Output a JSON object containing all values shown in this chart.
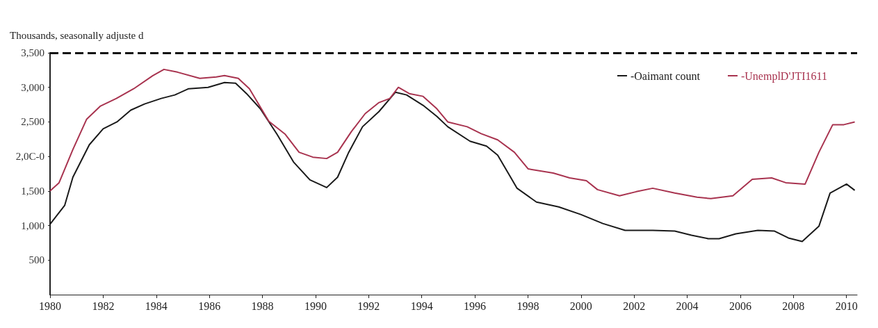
{
  "chart_data": {
    "type": "line",
    "ylabel": "Thousands, seasonally adjuste d",
    "xlim": [
      1980,
      2010.4
    ],
    "xticks": [
      1980,
      1982,
      1984,
      1986,
      1988,
      1990,
      1992,
      1994,
      1996,
      1998,
      2000,
      2002,
      2004,
      2006,
      2008,
      2010
    ],
    "ylim": [
      0,
      3500
    ],
    "yticks": [
      {
        "value": 500,
        "label": "500"
      },
      {
        "value": 1000,
        "label": "1,000"
      },
      {
        "value": 1500,
        "label": "1,500"
      },
      {
        "value": 2000,
        "label": "2,0C-0"
      },
      {
        "value": 2500,
        "label": "2,500"
      },
      {
        "value": 3000,
        "label": "3,000"
      },
      {
        "value": 3500,
        "label": "3,500"
      }
    ],
    "ref_lines": [
      {
        "axis": "y",
        "value": 3500,
        "line_style": "dashed",
        "color": "#111111"
      }
    ],
    "legend": "top right",
    "grid": false,
    "marker": "none",
    "line_style": "solid",
    "series": [
      {
        "name": "-Oaimant count",
        "color": "#1a1a1a",
        "x": [
          1980.0,
          1980.55,
          1980.86,
          1981.48,
          1982.0,
          1982.52,
          1983.04,
          1983.56,
          1984.19,
          1984.7,
          1985.22,
          1985.95,
          1986.57,
          1986.99,
          1987.4,
          1987.92,
          1988.55,
          1989.17,
          1989.79,
          1990.42,
          1990.83,
          1991.25,
          1991.77,
          1992.39,
          1993.01,
          1993.43,
          1994.05,
          1994.57,
          1994.98,
          1995.82,
          1996.44,
          1996.86,
          1997.59,
          1998.32,
          1999.16,
          1999.99,
          2000.82,
          2001.66,
          2002.7,
          2003.53,
          2004.16,
          2004.79,
          2005.2,
          2005.83,
          2006.66,
          2007.29,
          2007.81,
          2008.33,
          2008.96,
          2009.38,
          2010.0,
          2010.31
        ],
        "values": [
          1020,
          1290,
          1700,
          2170,
          2400,
          2500,
          2670,
          2760,
          2840,
          2890,
          2980,
          3000,
          3070,
          3060,
          2910,
          2690,
          2320,
          1920,
          1660,
          1550,
          1700,
          2060,
          2430,
          2650,
          2930,
          2890,
          2740,
          2580,
          2430,
          2220,
          2150,
          2020,
          1540,
          1340,
          1270,
          1160,
          1030,
          930,
          930,
          920,
          860,
          810,
          810,
          880,
          930,
          920,
          820,
          770,
          990,
          1470,
          1600,
          1510
        ]
      },
      {
        "name": "-UnemplD'JTI1611",
        "color": "#a8334f",
        "x": [
          1980.0,
          1980.34,
          1980.86,
          1981.38,
          1981.9,
          1982.5,
          1983.15,
          1983.87,
          1984.29,
          1984.8,
          1985.64,
          1986.26,
          1986.57,
          1987.09,
          1987.51,
          1988.24,
          1988.86,
          1989.38,
          1989.9,
          1990.42,
          1990.83,
          1991.35,
          1991.87,
          1992.39,
          1992.8,
          1993.12,
          1993.53,
          1994.05,
          1994.57,
          1994.98,
          1995.71,
          1996.24,
          1996.86,
          1997.49,
          1998.01,
          1998.95,
          1999.57,
          2000.2,
          2000.62,
          2001.45,
          2002.08,
          2002.7,
          2003.53,
          2004.37,
          2004.89,
          2005.72,
          2006.45,
          2007.18,
          2007.71,
          2008.44,
          2008.96,
          2009.48,
          2009.9,
          2010.31
        ],
        "values": [
          1500,
          1620,
          2100,
          2540,
          2730,
          2840,
          2980,
          3170,
          3260,
          3220,
          3130,
          3150,
          3170,
          3130,
          2980,
          2510,
          2320,
          2060,
          1990,
          1970,
          2060,
          2360,
          2620,
          2780,
          2840,
          3000,
          2910,
          2870,
          2690,
          2500,
          2430,
          2330,
          2240,
          2060,
          1820,
          1760,
          1690,
          1650,
          1520,
          1430,
          1490,
          1540,
          1470,
          1410,
          1390,
          1430,
          1670,
          1690,
          1620,
          1600,
          2060,
          2460,
          2460,
          2500
        ]
      }
    ]
  }
}
